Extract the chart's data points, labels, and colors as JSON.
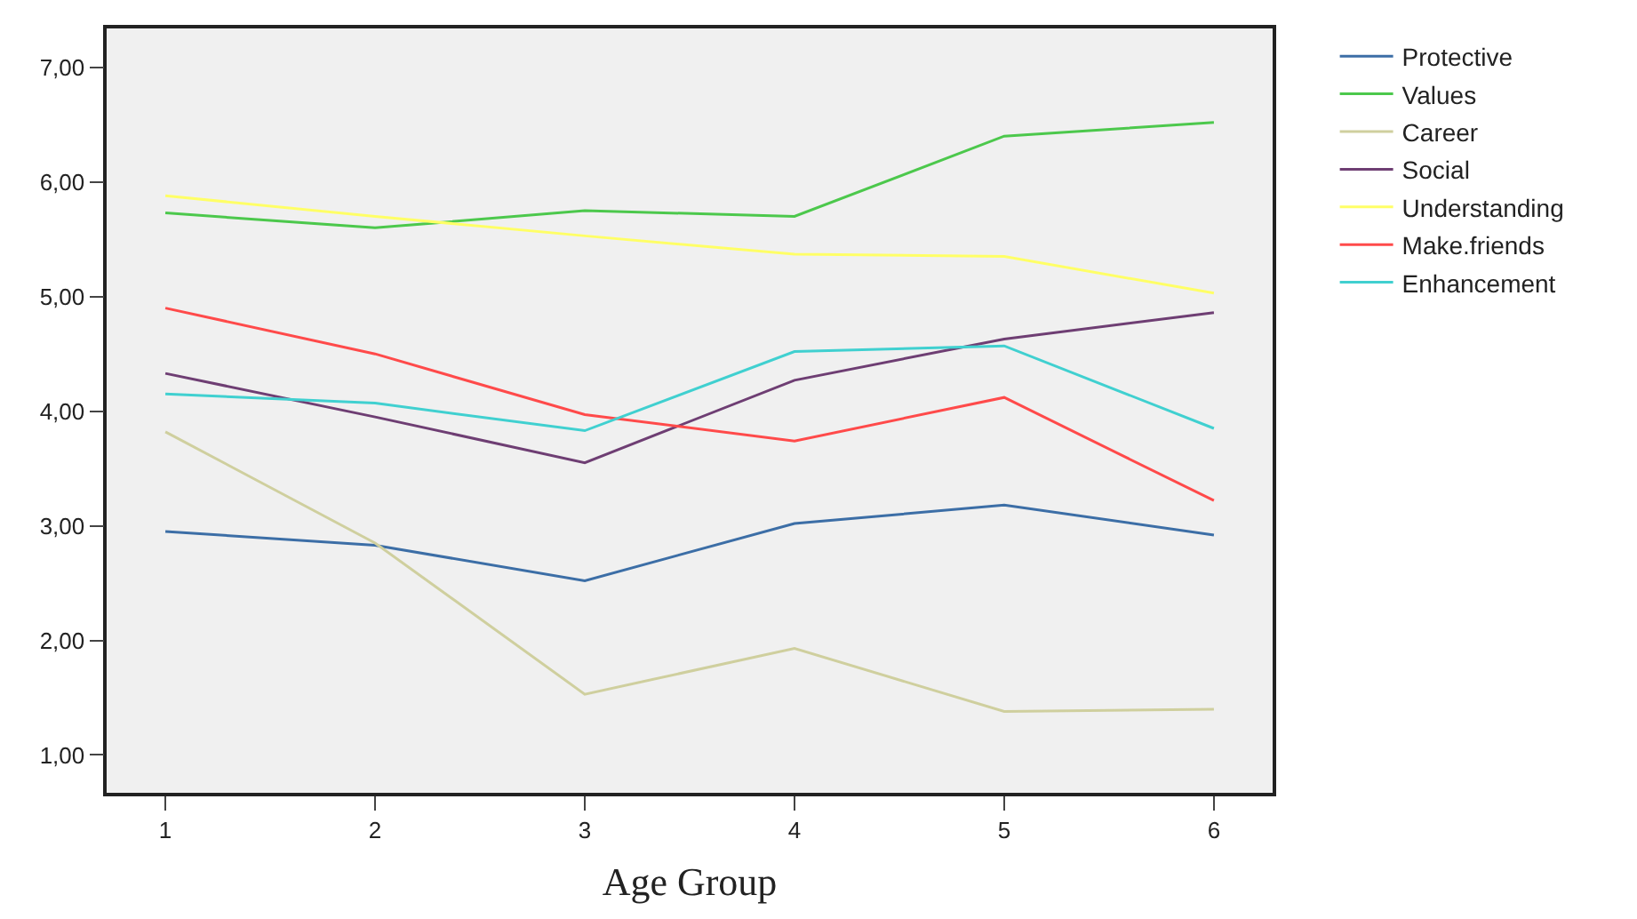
{
  "chart_data": {
    "type": "line",
    "xlabel": "Age Group",
    "x": [
      1,
      2,
      3,
      4,
      5,
      6
    ],
    "xlim": [
      0.72,
      6.28
    ],
    "xticks": [
      1,
      2,
      3,
      4,
      5,
      6
    ],
    "ylim": [
      0.67,
      7.34
    ],
    "yticks": [
      {
        "value": 1,
        "label": "1,00"
      },
      {
        "value": 2,
        "label": "2,00"
      },
      {
        "value": 3,
        "label": "3,00"
      },
      {
        "value": 4,
        "label": "4,00"
      },
      {
        "value": 5,
        "label": "5,00"
      },
      {
        "value": 6,
        "label": "6,00"
      },
      {
        "value": 7,
        "label": "7,00"
      }
    ],
    "grid": false,
    "legend": "top right",
    "marker": "none",
    "line_style": "solid",
    "series": [
      {
        "name": "Protective",
        "color": "#3c6ea6",
        "values": [
          2.95,
          2.83,
          2.52,
          3.02,
          3.18,
          2.92
        ]
      },
      {
        "name": "Values",
        "color": "#4cc84c",
        "values": [
          5.73,
          5.6,
          5.75,
          5.7,
          6.4,
          6.52
        ]
      },
      {
        "name": "Career",
        "color": "#cfcf9e",
        "values": [
          3.82,
          2.85,
          1.53,
          1.93,
          1.38,
          1.4
        ]
      },
      {
        "name": "Social",
        "color": "#6e3e73",
        "values": [
          4.33,
          3.95,
          3.55,
          4.27,
          4.63,
          4.86
        ]
      },
      {
        "name": "Understanding",
        "color": "#ffff66",
        "values": [
          5.88,
          5.7,
          5.53,
          5.37,
          5.35,
          5.03
        ]
      },
      {
        "name": "Make.friends",
        "color": "#ff4a4a",
        "values": [
          4.9,
          4.5,
          3.97,
          3.74,
          4.12,
          3.22
        ]
      },
      {
        "name": "Enhancement",
        "color": "#40d0d0",
        "values": [
          4.15,
          4.07,
          3.83,
          4.52,
          4.57,
          3.85
        ]
      }
    ]
  }
}
